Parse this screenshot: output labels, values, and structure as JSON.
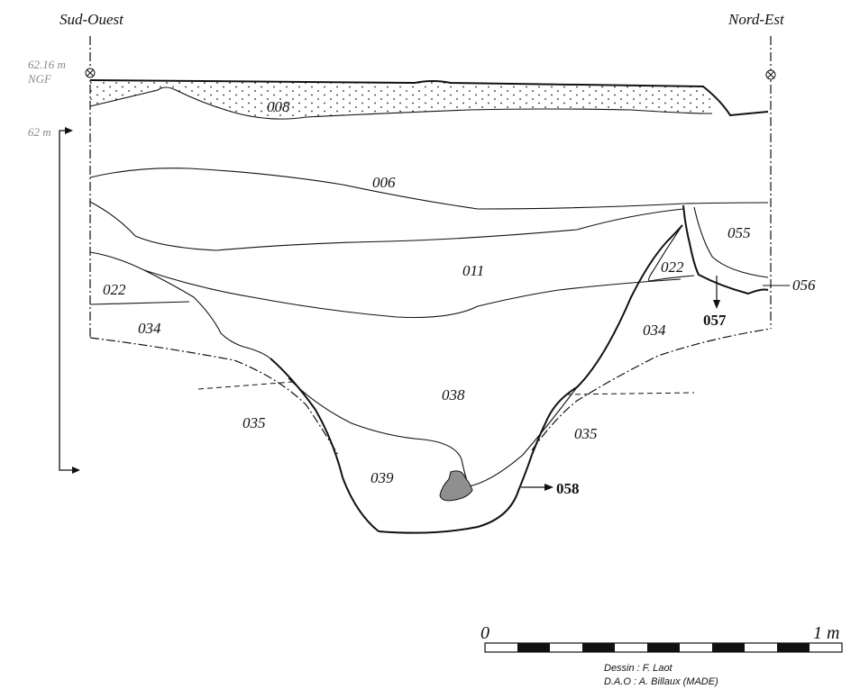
{
  "orientation": {
    "left": "Sud-Ouest",
    "right": "Nord-Est"
  },
  "reference": {
    "altitude": "62.16 m",
    "datum": "NGF",
    "level": "62 m"
  },
  "layers": [
    "008",
    "006",
    "011",
    "022",
    "022",
    "055",
    "056",
    "034",
    "034",
    "038",
    "035",
    "035",
    "039"
  ],
  "structures": [
    "057",
    "058"
  ],
  "scale": {
    "start": "0",
    "end": "1 m"
  },
  "credits": {
    "drawing": "Dessin : F. Laot",
    "dao": "D.A.O : A. Billaux (MADE)"
  }
}
